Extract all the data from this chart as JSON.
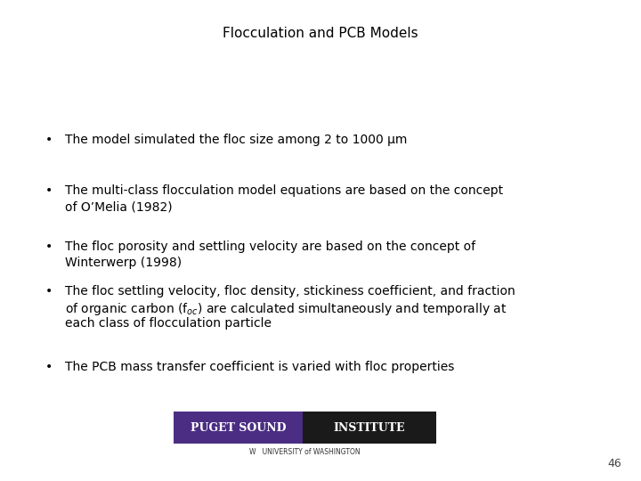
{
  "title": "Flocculation and PCB Models",
  "title_fontsize": 11,
  "title_color": "#000000",
  "background_color": "#ffffff",
  "bullet_fontsize": 10,
  "bullet_color": "#000000",
  "bullets": [
    {
      "has_subscript": false,
      "lines": [
        "The model simulated the floc size among 2 to 1000 μm"
      ]
    },
    {
      "has_subscript": false,
      "lines": [
        "The multi-class flocculation model equations are based on the concept",
        "of O’Melia (1982)"
      ]
    },
    {
      "has_subscript": false,
      "lines": [
        "The floc porosity and settling velocity are based on the concept of",
        "Winterwerp (1998)"
      ]
    },
    {
      "has_subscript": true,
      "subscript_line": 1,
      "lines": [
        "The floc settling velocity, floc density, stickiness coefficient, and fraction",
        "of organic carbon (f$_{oc}$) are calculated simultaneously and temporally at",
        "each class of flocculation particle"
      ]
    },
    {
      "has_subscript": false,
      "lines": [
        "The PCB mass transfer coefficient is varied with floc properties"
      ]
    }
  ],
  "logo_left_color": "#4B2E83",
  "logo_right_color": "#1a1a1a",
  "logo_left_text": "PUGET SOUND",
  "logo_right_text": "INSTITUTE",
  "logo_sub_text": "W   UNIVERSITY of WASHINGTON",
  "page_number": "46"
}
